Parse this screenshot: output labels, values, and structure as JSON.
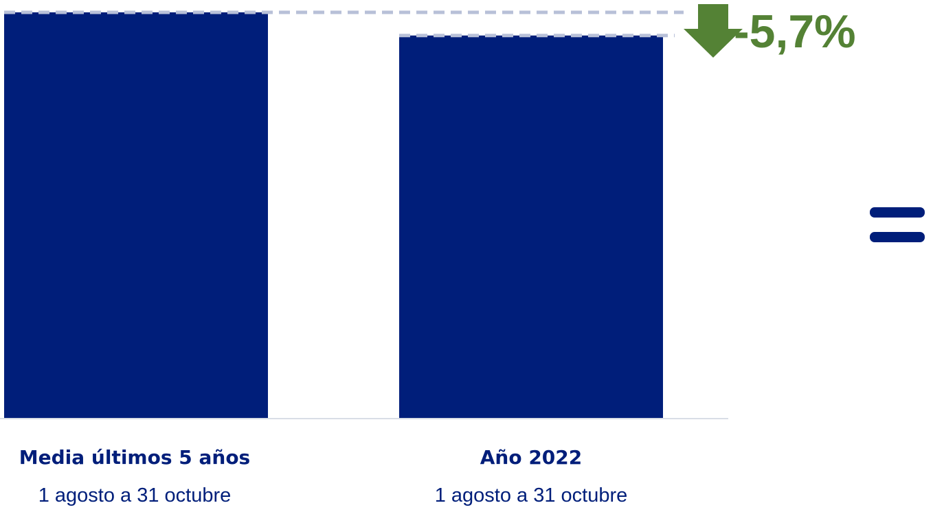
{
  "chart_data": {
    "type": "bar",
    "categories": [
      "Media últimos 5 años",
      "Año 2022"
    ],
    "category_sublabels": [
      "1 agosto a 31 octubre",
      "1 agosto a 31 octubre"
    ],
    "values": [
      100,
      94.3
    ],
    "ylim": [
      0,
      100
    ],
    "grid": false,
    "bar_color": "#001e7a",
    "reference_line_color": "#b8c0d8",
    "axis_color": "#d9dde6",
    "annotation": {
      "text": "-5,7%",
      "color": "#548235",
      "icon": "arrow-down-icon"
    }
  },
  "decoration": {
    "icon": "equals-icon",
    "color": "#001e7a"
  }
}
